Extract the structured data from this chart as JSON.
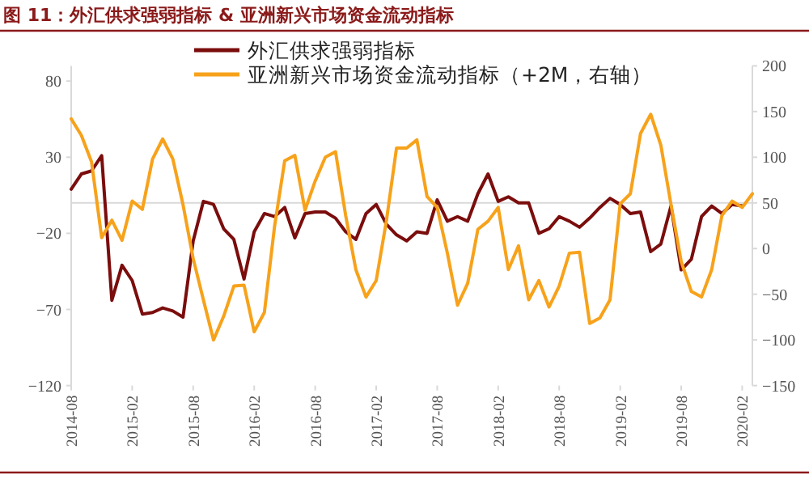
{
  "chart_data": {
    "type": "line",
    "title": "图 11：外汇供求强弱指标 & 亚洲新兴市场资金流动指标",
    "x": [
      "2014-08",
      "2014-09",
      "2014-10",
      "2014-11",
      "2014-12",
      "2015-01",
      "2015-02",
      "2015-03",
      "2015-04",
      "2015-05",
      "2015-06",
      "2015-07",
      "2015-08",
      "2015-09",
      "2015-10",
      "2015-11",
      "2015-12",
      "2016-01",
      "2016-02",
      "2016-03",
      "2016-04",
      "2016-05",
      "2016-06",
      "2016-07",
      "2016-08",
      "2016-09",
      "2016-10",
      "2016-11",
      "2016-12",
      "2017-01",
      "2017-02",
      "2017-03",
      "2017-04",
      "2017-05",
      "2017-06",
      "2017-07",
      "2017-08",
      "2017-09",
      "2017-10",
      "2017-11",
      "2017-12",
      "2018-01",
      "2018-02",
      "2018-03",
      "2018-04",
      "2018-05",
      "2018-06",
      "2018-07",
      "2018-08",
      "2018-09",
      "2018-10",
      "2018-11",
      "2018-12",
      "2019-01",
      "2019-02",
      "2019-03",
      "2019-04",
      "2019-05",
      "2019-06",
      "2019-07",
      "2019-08",
      "2019-09",
      "2019-10",
      "2019-11",
      "2019-12",
      "2020-01",
      "2020-02",
      "2020-03"
    ],
    "series": [
      {
        "name": "外汇供求强弱指标",
        "color": "#7b0d0d",
        "values": [
          9,
          19,
          21,
          31,
          -64,
          -41,
          -51,
          -73,
          -72,
          -69,
          -71,
          -75,
          -25,
          1,
          -1,
          -17,
          -24,
          -50,
          -19,
          -7,
          -9,
          -3,
          -23,
          -7,
          -6,
          -6,
          -10,
          -19,
          -24,
          -7,
          -1,
          -14,
          -21,
          -25,
          -19,
          -20,
          2,
          -12,
          -9,
          -12,
          6,
          19,
          1,
          4,
          0,
          0,
          -20,
          -17,
          -9,
          -12,
          -16,
          -10,
          -3,
          3,
          -1,
          -7,
          -6,
          -32,
          -27,
          -2,
          -44,
          -37,
          -9,
          -2,
          -7,
          -1,
          -2,
          null
        ]
      },
      {
        "name": "亚洲新兴市场资金流动指标（+2M，右轴）",
        "color": "#f7a21b",
        "axis": "y2",
        "values": [
          142,
          124,
          95,
          12,
          31,
          9,
          52,
          43,
          98,
          120,
          98,
          48,
          -11,
          -56,
          -100,
          -74,
          -41,
          -40,
          -91,
          -70,
          24,
          96,
          102,
          42,
          74,
          100,
          106,
          36,
          -23,
          -53,
          -35,
          30,
          110,
          110,
          119,
          57,
          45,
          -5,
          -62,
          -38,
          21,
          30,
          45,
          -23,
          3,
          -56,
          -35,
          -64,
          -41,
          -5,
          -4,
          -82,
          -76,
          -56,
          49,
          60,
          126,
          147,
          113,
          48,
          -14,
          -47,
          -53,
          -23,
          36,
          52,
          45,
          60
        ]
      }
    ],
    "xlim": [
      "2014-08",
      "2020-03"
    ],
    "xticks": [
      "2014-08",
      "2015-02",
      "2015-08",
      "2016-02",
      "2016-08",
      "2017-02",
      "2017-08",
      "2018-02",
      "2018-08",
      "2019-02",
      "2019-08",
      "2020-02"
    ],
    "ylim": [
      -120,
      90
    ],
    "yticks": [
      -120,
      -70,
      -20,
      30,
      80
    ],
    "y2lim": [
      -150,
      200
    ],
    "y2ticks": [
      -150,
      -100,
      -50,
      0,
      50,
      100,
      150,
      200
    ],
    "ref_lines": [
      {
        "axis": "y",
        "value": 0,
        "color": "#d9d9d9"
      }
    ],
    "legend": "top",
    "grid": false,
    "marker": "none",
    "line_style": "solid"
  }
}
